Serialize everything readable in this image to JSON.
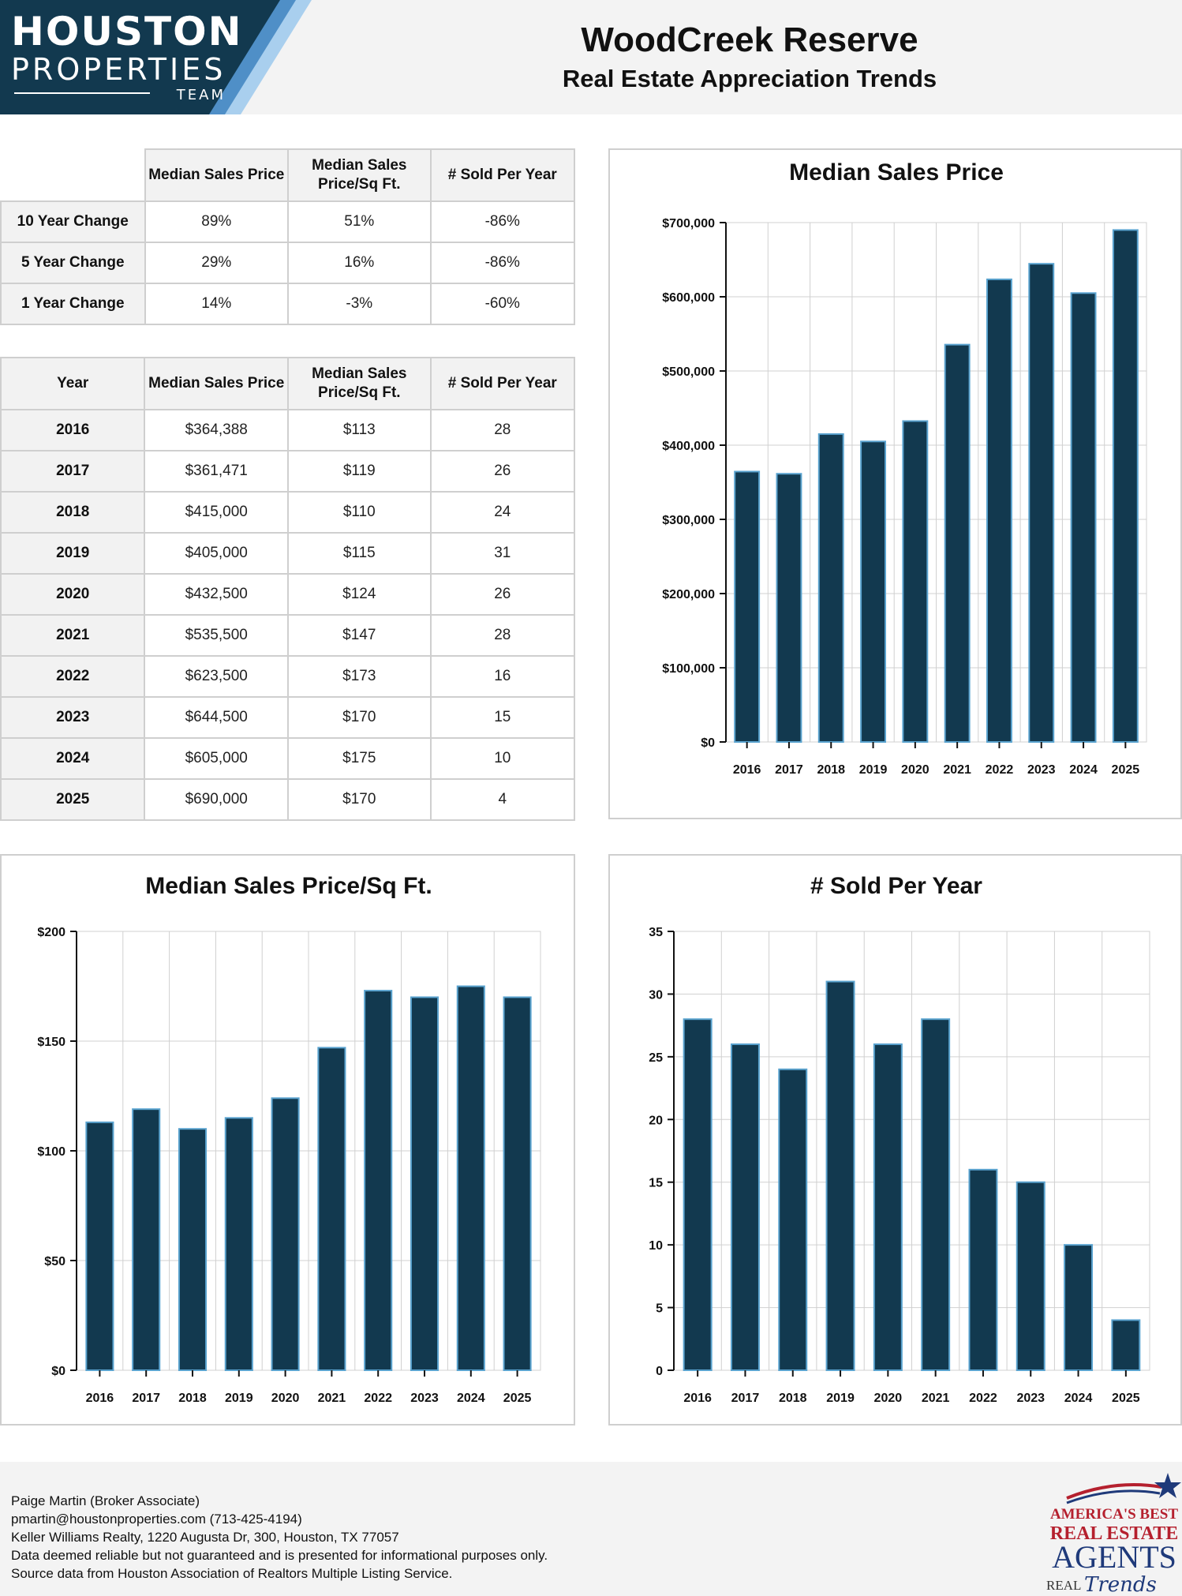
{
  "logo": {
    "line1": "HOUSTON",
    "line2": "PROPERTIES",
    "line3": "TEAM"
  },
  "header": {
    "title": "WoodCreek Reserve",
    "subtitle": "Real Estate Appreciation Trends"
  },
  "colors": {
    "navy": "#12394f",
    "bar": "#12394f",
    "bar_edge": "#5aa3cf",
    "accent_light": "#a9cfee",
    "accent_mid": "#4f8fc7"
  },
  "change_table": {
    "headers": [
      "Median Sales Price",
      "Median Sales Price/Sq Ft.",
      "# Sold Per Year"
    ],
    "rows": [
      {
        "label": "10 Year Change",
        "price": "89%",
        "sqft": "51%",
        "sold": "-86%"
      },
      {
        "label": "5 Year Change",
        "price": "29%",
        "sqft": "16%",
        "sold": "-86%"
      },
      {
        "label": "1 Year Change",
        "price": "14%",
        "sqft": "-3%",
        "sold": "-60%"
      }
    ]
  },
  "year_table": {
    "headers": [
      "Year",
      "Median Sales Price",
      "Median Sales Price/Sq Ft.",
      "# Sold Per Year"
    ],
    "rows": [
      {
        "year": "2016",
        "price": "$364,388",
        "sqft": "$113",
        "sold": "28"
      },
      {
        "year": "2017",
        "price": "$361,471",
        "sqft": "$119",
        "sold": "26"
      },
      {
        "year": "2018",
        "price": "$415,000",
        "sqft": "$110",
        "sold": "24"
      },
      {
        "year": "2019",
        "price": "$405,000",
        "sqft": "$115",
        "sold": "31"
      },
      {
        "year": "2020",
        "price": "$432,500",
        "sqft": "$124",
        "sold": "26"
      },
      {
        "year": "2021",
        "price": "$535,500",
        "sqft": "$147",
        "sold": "28"
      },
      {
        "year": "2022",
        "price": "$623,500",
        "sqft": "$173",
        "sold": "16"
      },
      {
        "year": "2023",
        "price": "$644,500",
        "sqft": "$170",
        "sold": "15"
      },
      {
        "year": "2024",
        "price": "$605,000",
        "sqft": "$175",
        "sold": "10"
      },
      {
        "year": "2025",
        "price": "$690,000",
        "sqft": "$170",
        "sold": "4"
      }
    ]
  },
  "chart_data": [
    {
      "type": "bar",
      "title": "Median Sales Price",
      "categories": [
        "2016",
        "2017",
        "2018",
        "2019",
        "2020",
        "2021",
        "2022",
        "2023",
        "2024",
        "2025"
      ],
      "values": [
        364388,
        361471,
        415000,
        405000,
        432500,
        535500,
        623500,
        644500,
        605000,
        690000
      ],
      "ylim": [
        0,
        700000
      ],
      "yticks": [
        0,
        100000,
        200000,
        300000,
        400000,
        500000,
        600000,
        700000
      ],
      "ytick_labels": [
        "$0",
        "$100,000",
        "$200,000",
        "$300,000",
        "$400,000",
        "$500,000",
        "$600,000",
        "$700,000"
      ],
      "grid": true,
      "legend": "none"
    },
    {
      "type": "bar",
      "title": "Median Sales Price/Sq Ft.",
      "categories": [
        "2016",
        "2017",
        "2018",
        "2019",
        "2020",
        "2021",
        "2022",
        "2023",
        "2024",
        "2025"
      ],
      "values": [
        113,
        119,
        110,
        115,
        124,
        147,
        173,
        170,
        175,
        170
      ],
      "ylim": [
        0,
        200
      ],
      "yticks": [
        0,
        50,
        100,
        150,
        200
      ],
      "ytick_labels": [
        "$0",
        "$50",
        "$100",
        "$150",
        "$200"
      ],
      "grid": true,
      "legend": "none"
    },
    {
      "type": "bar",
      "title": "# Sold Per Year",
      "categories": [
        "2016",
        "2017",
        "2018",
        "2019",
        "2020",
        "2021",
        "2022",
        "2023",
        "2024",
        "2025"
      ],
      "values": [
        28,
        26,
        24,
        31,
        26,
        28,
        16,
        15,
        10,
        4
      ],
      "ylim": [
        0,
        35
      ],
      "yticks": [
        0,
        5,
        10,
        15,
        20,
        25,
        30,
        35
      ],
      "ytick_labels": [
        "0",
        "5",
        "10",
        "15",
        "20",
        "25",
        "30",
        "35"
      ],
      "grid": true,
      "legend": "none"
    }
  ],
  "footer": {
    "lines": [
      "Paige Martin (Broker Associate)",
      "pmartin@houstonproperties.com (713-425-4194)",
      "Keller Williams Realty, 1220 Augusta Dr, 300, Houston, TX 77057",
      "Data deemed reliable but not guaranteed and is presented for informational purposes only.",
      "Source data from Houston Association of Realtors Multiple Listing Service."
    ]
  },
  "badge": {
    "line1": "AMERICA'S BEST",
    "line2": "REAL ESTATE",
    "line3": "AGENTS",
    "line4": "REAL",
    "line5": "Trends"
  }
}
